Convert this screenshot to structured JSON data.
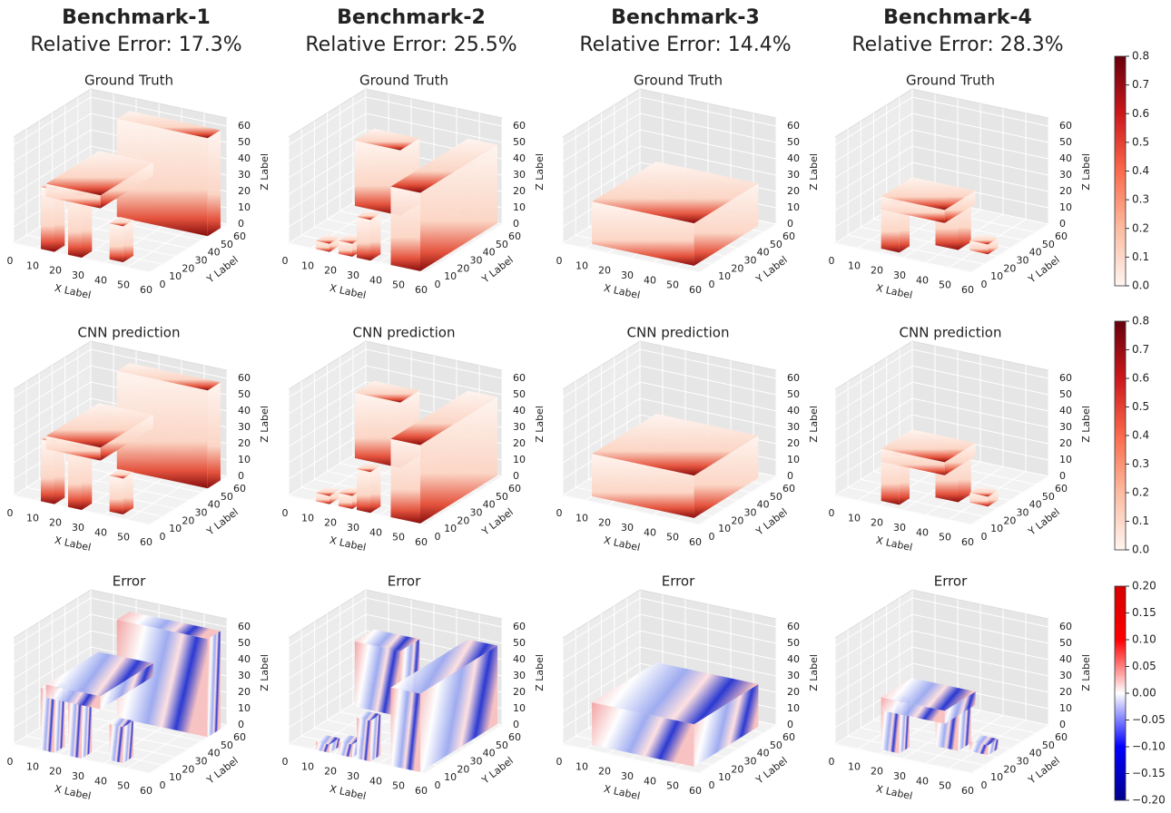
{
  "columns": [
    {
      "title": "Benchmark-1",
      "subtitle": "Relative Error: 17.3%"
    },
    {
      "title": "Benchmark-2",
      "subtitle": "Relative Error: 25.5%"
    },
    {
      "title": "Benchmark-3",
      "subtitle": "Relative Error: 14.4%"
    },
    {
      "title": "Benchmark-4",
      "subtitle": "Relative Error: 28.3%"
    }
  ],
  "rows": [
    {
      "title": "Ground Truth"
    },
    {
      "title": "CNN prediction"
    },
    {
      "title": "Error"
    }
  ],
  "axes": {
    "x_label": "X Label",
    "y_label": "Y Label",
    "z_label": "Z Label",
    "x_ticks": [
      0,
      10,
      20,
      30,
      40,
      50,
      60
    ],
    "y_ticks": [
      0,
      10,
      20,
      30,
      40,
      50,
      60
    ],
    "z_ticks": [
      0,
      10,
      20,
      30,
      40,
      50,
      60
    ]
  },
  "colorbars": [
    {
      "lim": [
        0,
        0.8
      ],
      "colors": [
        "#fff5f0",
        "#fcbba1",
        "#fb6a4a",
        "#cb181d",
        "#67000d"
      ],
      "ticks": [
        {
          "value": 0,
          "label": "0.0"
        },
        0.1,
        0.2,
        0.3,
        0.4,
        0.5,
        0.6,
        0.7,
        0.8
      ]
    },
    {
      "lim": [
        0,
        0.8
      ],
      "colors": [
        "#fff5f0",
        "#fcbba1",
        "#fb6a4a",
        "#cb181d",
        "#67000d"
      ],
      "ticks": [
        {
          "value": 0,
          "label": "0.0"
        },
        0.1,
        0.2,
        0.3,
        0.4,
        0.5,
        0.6,
        0.7,
        0.8
      ]
    },
    {
      "lim": [
        -0.2,
        0.2
      ],
      "colors": [
        "#00008b",
        "#0000ff",
        "#ffffff",
        "#ff0000",
        "#d40000"
      ],
      "ticks": [
        {
          "value": -0.2,
          "label": "−0.20"
        },
        {
          "value": -0.15,
          "label": "−0.15"
        },
        {
          "value": -0.1,
          "label": "−0.10"
        },
        {
          "value": -0.05,
          "label": "−0.05"
        },
        {
          "value": 0,
          "label": "0.00"
        },
        {
          "value": 0.05,
          "label": "0.05"
        },
        {
          "value": 0.1,
          "label": "0.10"
        },
        {
          "value": 0.15,
          "label": "0.15"
        },
        {
          "value": 0.2,
          "label": "0.20"
        }
      ]
    }
  ]
}
